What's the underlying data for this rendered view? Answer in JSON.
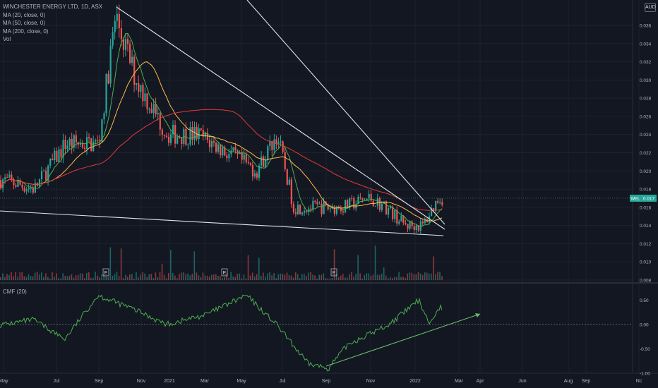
{
  "legend": {
    "title": "WINCHESTER ENERGY LTD, 1D, ASX",
    "ma20": "MA (20, close, 0)",
    "ma50": "MA (50, close, 0)",
    "ma200": "MA (200, close, 0)",
    "vol": "Vol"
  },
  "currency": "AUD",
  "cmf_label": "CMF (20)",
  "price_tag": {
    "symbol": "WEL",
    "value": "0.017"
  },
  "colors": {
    "background": "#131722",
    "grid": "#1e222d",
    "up": "#26a69a",
    "down": "#ef5350",
    "ma20": "#4caf50",
    "ma50": "#ffb74d",
    "ma200": "#e53935",
    "trendline": "#e0e3eb",
    "cmf": "#4caf50",
    "cmf_trend": "#66bb6a"
  },
  "chart_data": [
    {
      "type": "candlestick",
      "series": [
        {
          "name": "Price",
          "x": [
            "2020-05-01",
            "2020-06-15",
            "2020-08-01",
            "2020-09-20",
            "2020-10-15",
            "2020-11-15",
            "2021-01-01",
            "2021-02-15",
            "2021-04-01",
            "2021-05-15",
            "2021-06-15",
            "2021-07-10",
            "2021-08-15",
            "2021-09-20",
            "2021-11-01",
            "2021-11-25",
            "2021-12-25",
            "2022-01-20",
            "2022-02-12"
          ],
          "y": [
            0.019,
            0.018,
            0.023,
            0.023,
            0.037,
            0.03,
            0.024,
            0.024,
            0.022,
            0.02,
            0.024,
            0.016,
            0.016,
            0.016,
            0.017,
            0.016,
            0.014,
            0.014,
            0.017
          ]
        }
      ],
      "moving_averages": [
        "MA (20, close, 0)",
        "MA (50, close, 0)",
        "MA (200, close, 0)"
      ],
      "ylim": [
        0.008,
        0.037
      ],
      "yticks": [
        "0.036",
        "0.034",
        "0.032",
        "0.030",
        "0.028",
        "0.026",
        "0.024",
        "0.022",
        "0.020",
        "0.018",
        "0.016",
        "0.014",
        "0.012",
        "0.010",
        "0.008"
      ],
      "xticks": [
        "May",
        "Jul",
        "Sep",
        "Nov",
        "2021",
        "Mar",
        "May",
        "Jul",
        "Sep",
        "Nov",
        "2022",
        "Mar",
        "Apr",
        "Jun",
        "Aug",
        "Sep",
        "Nc"
      ],
      "earnings_markers": [
        "E",
        "E",
        "E"
      ],
      "last_price": "0.017"
    },
    {
      "type": "line",
      "title": "CMF (20)",
      "series": [
        {
          "name": "CMF (20)",
          "x": [
            "2020-05-01",
            "2020-06-15",
            "2020-08-01",
            "2020-09-20",
            "2020-11-15",
            "2021-01-01",
            "2021-03-01",
            "2021-05-01",
            "2021-06-15",
            "2021-08-01",
            "2021-09-01",
            "2021-10-01",
            "2021-11-01",
            "2021-12-01",
            "2022-01-15",
            "2022-02-01",
            "2022-02-12"
          ],
          "y": [
            0.0,
            0.1,
            -0.3,
            0.6,
            0.3,
            0.0,
            0.2,
            0.6,
            0.0,
            -0.8,
            -0.9,
            -0.4,
            -0.2,
            0.0,
            0.5,
            0.0,
            0.35
          ]
        }
      ],
      "ylim": [
        -1.0,
        0.6
      ],
      "yticks": [
        "0.50",
        "0.00",
        "-0.50",
        "-1.00"
      ]
    }
  ]
}
